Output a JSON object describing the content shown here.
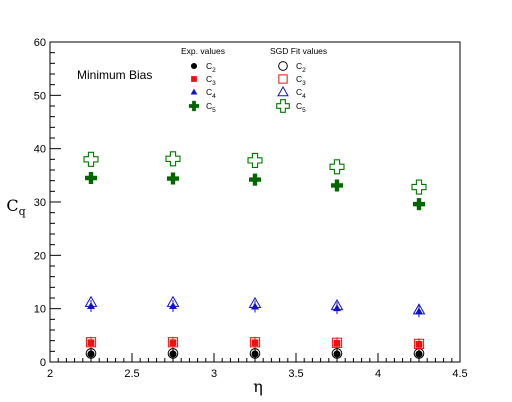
{
  "chart_data": {
    "type": "scatter",
    "xlabel": "η",
    "ylabel_main": "C",
    "ylabel_sub": "q",
    "xlim": [
      2,
      4.5
    ],
    "ylim": [
      0,
      60
    ],
    "x_ticks": [
      "2",
      "2.5",
      "3",
      "3.5",
      "4",
      "4.5"
    ],
    "y_ticks": [
      "0",
      "10",
      "20",
      "30",
      "40",
      "50",
      "60"
    ],
    "annotation": "Minimum Bias",
    "x": [
      2.25,
      2.75,
      3.25,
      3.75,
      4.25
    ],
    "legend_headers": {
      "exp": "Exp. values",
      "fit": "SGD Fit values"
    },
    "series": [
      {
        "name": "C",
        "sub": "2",
        "kind": "exp",
        "marker": "filled-circle",
        "color": "#000000",
        "values": [
          1.5,
          1.5,
          1.5,
          1.5,
          1.5
        ]
      },
      {
        "name": "C",
        "sub": "3",
        "kind": "exp",
        "marker": "filled-square",
        "color": "#ee1111",
        "values": [
          3.6,
          3.6,
          3.6,
          3.5,
          3.3
        ]
      },
      {
        "name": "C",
        "sub": "4",
        "kind": "exp",
        "marker": "filled-triangle",
        "color": "#1111cc",
        "values": [
          10.5,
          10.5,
          10.4,
          10.1,
          9.5
        ]
      },
      {
        "name": "C",
        "sub": "5",
        "kind": "exp",
        "marker": "filled-cross",
        "color": "#006600",
        "values": [
          34.5,
          34.4,
          34.2,
          33.1,
          29.6
        ]
      },
      {
        "name": "C",
        "sub": "2",
        "kind": "fit",
        "marker": "open-circle",
        "color": "#000000",
        "values": [
          1.6,
          1.6,
          1.6,
          1.6,
          1.6
        ]
      },
      {
        "name": "C",
        "sub": "3",
        "kind": "fit",
        "marker": "open-square",
        "color": "#ee1111",
        "values": [
          3.7,
          3.7,
          3.7,
          3.6,
          3.4
        ]
      },
      {
        "name": "C",
        "sub": "4",
        "kind": "fit",
        "marker": "open-triangle",
        "color": "#1111cc",
        "values": [
          11.2,
          11.2,
          11.0,
          10.6,
          9.8
        ]
      },
      {
        "name": "C",
        "sub": "5",
        "kind": "fit",
        "marker": "open-cross",
        "color": "#007700",
        "values": [
          38.0,
          38.1,
          37.8,
          36.6,
          32.8
        ]
      }
    ],
    "grid": false,
    "legend_position": "top-center"
  }
}
